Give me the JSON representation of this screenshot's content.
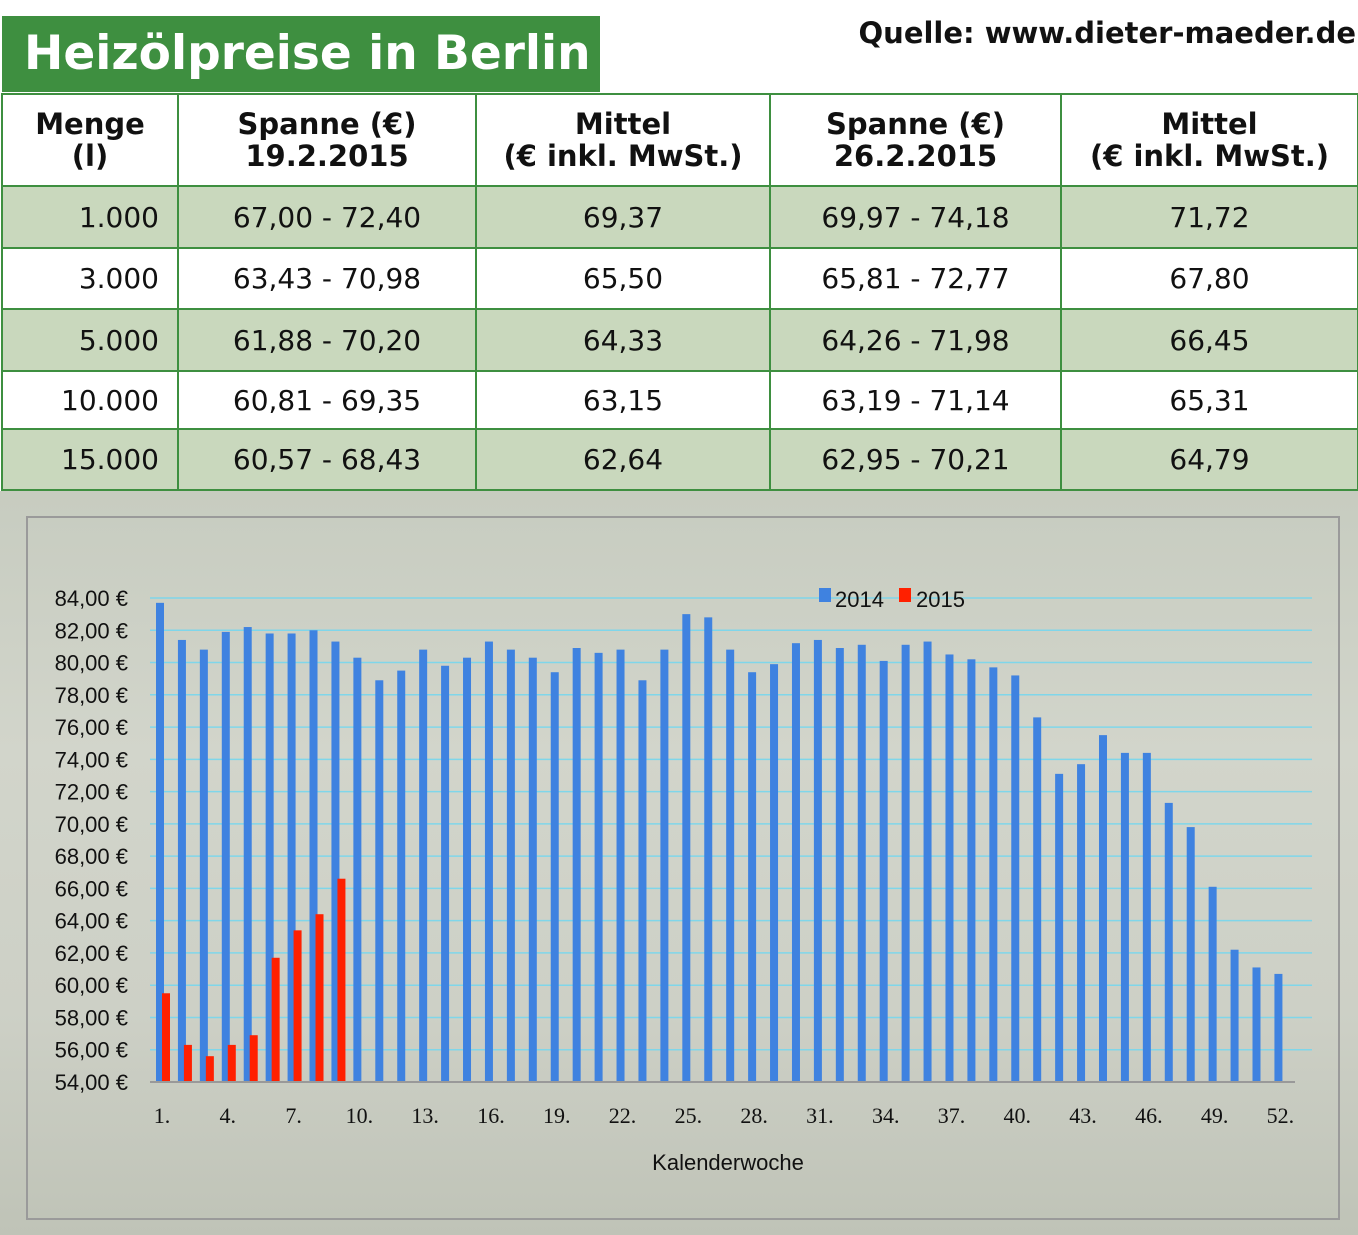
{
  "header": {
    "title": "Heizölpreise in Berlin",
    "source": "Quelle: www.dieter-maeder.de"
  },
  "table": {
    "columns": [
      {
        "line1": "Menge",
        "line2": "(l)"
      },
      {
        "line1": "Spanne (€)",
        "line2": "19.2.2015"
      },
      {
        "line1": "Mittel",
        "line2": "(€ inkl. MwSt.)"
      },
      {
        "line1": "Spanne (€)",
        "line2": "26.2.2015"
      },
      {
        "line1": "Mittel",
        "line2": "(€ inkl. MwSt.)"
      }
    ],
    "rows": [
      [
        "1.000",
        "67,00 - 72,40",
        "69,37",
        "69,97 - 74,18",
        "71,72"
      ],
      [
        "3.000",
        "63,43 - 70,98",
        "65,50",
        "65,81 - 72,77",
        "67,80"
      ],
      [
        "5.000",
        "61,88 - 70,20",
        "64,33",
        "64,26 - 71,98",
        "66,45"
      ],
      [
        "10.000",
        "60,81 - 69,35",
        "63,15",
        "63,19 - 71,14",
        "65,31"
      ],
      [
        "15.000",
        "60,57 - 68,43",
        "62,64",
        "62,95 - 70,21",
        "64,79"
      ]
    ]
  },
  "colors": {
    "accent": "#3e8f40",
    "row_shade": "#c9d8bd",
    "series_2014": "#3f82e0",
    "series_2015": "#ff2000",
    "grid": "#7fd6ea"
  },
  "chart_data": {
    "type": "bar",
    "xlabel": "Kalenderwoche",
    "ylabel": "",
    "ylim": [
      54,
      84
    ],
    "yticks": [
      54,
      56,
      58,
      60,
      62,
      64,
      66,
      68,
      70,
      72,
      74,
      76,
      78,
      80,
      82,
      84
    ],
    "ytick_suffix": ",00 €",
    "x_tick_labels": [
      "1.",
      "4.",
      "7.",
      "10.",
      "13.",
      "16.",
      "19.",
      "22.",
      "25.",
      "28.",
      "31.",
      "34.",
      "37.",
      "40.",
      "43.",
      "46.",
      "49.",
      "52."
    ],
    "x_tick_weeks": [
      1,
      4,
      7,
      10,
      13,
      16,
      19,
      22,
      25,
      28,
      31,
      34,
      37,
      40,
      43,
      46,
      49,
      52
    ],
    "legend_position": "top-center",
    "series": [
      {
        "name": "2014",
        "weeks": [
          1,
          2,
          3,
          4,
          5,
          6,
          7,
          8,
          9,
          10,
          11,
          12,
          13,
          14,
          15,
          16,
          17,
          18,
          19,
          20,
          21,
          22,
          23,
          24,
          25,
          26,
          27,
          28,
          29,
          30,
          31,
          32,
          33,
          34,
          35,
          36,
          37,
          38,
          39,
          40,
          41,
          42,
          43,
          44,
          45,
          46,
          47,
          48,
          49,
          50,
          51,
          52
        ],
        "values": [
          83.7,
          81.4,
          80.8,
          81.9,
          82.2,
          81.8,
          81.8,
          82.0,
          81.3,
          80.3,
          78.9,
          79.5,
          80.8,
          79.8,
          80.3,
          81.3,
          80.8,
          80.3,
          79.4,
          80.9,
          80.6,
          80.8,
          78.9,
          80.8,
          83.0,
          82.8,
          80.8,
          79.4,
          79.9,
          81.2,
          81.4,
          80.9,
          81.1,
          80.1,
          81.1,
          81.3,
          80.5,
          80.2,
          79.7,
          79.2,
          76.6,
          73.1,
          73.7,
          75.5,
          74.4,
          74.4,
          71.3,
          69.8,
          66.1,
          62.2,
          61.1,
          60.7
        ]
      },
      {
        "name": "2015",
        "weeks": [
          1,
          2,
          3,
          4,
          5,
          6,
          7,
          8,
          9
        ],
        "values": [
          59.5,
          56.3,
          55.6,
          56.3,
          56.9,
          61.7,
          63.4,
          64.4,
          66.6
        ]
      }
    ]
  }
}
